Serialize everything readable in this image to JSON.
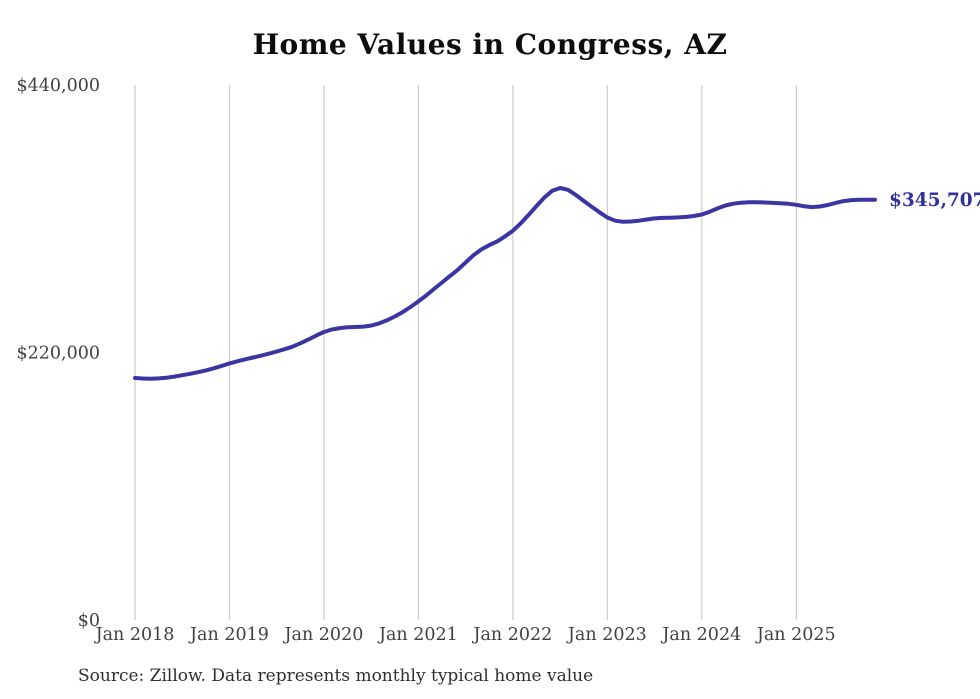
{
  "title": "Home Values in Congress, AZ",
  "source": "Source: Zillow. Data represents monthly typical home value",
  "colors": {
    "line": "#3b35a2",
    "end_label": "#34309a",
    "gridline": "#cccccc",
    "tick_text": "#414141",
    "title_text": "#0d0d0d",
    "source_text": "#2f2f2f"
  },
  "chart_data": {
    "type": "line",
    "title": "Home Values in Congress, AZ",
    "xlabel": "",
    "ylabel": "",
    "ylim": [
      0,
      440000
    ],
    "grid": "vertical-only",
    "legend": "none",
    "end_label": "$345,707",
    "y_ticks": [
      {
        "label": "$440,000",
        "value": 440000
      },
      {
        "label": "$220,000",
        "value": 220000
      },
      {
        "label": "$0",
        "value": 0
      }
    ],
    "x_tick_labels": [
      "Jan 2018",
      "Jan 2019",
      "Jan 2020",
      "Jan 2021",
      "Jan 2022",
      "Jan 2023",
      "Jan 2024",
      "Jan 2025"
    ],
    "x": [
      "2018-01",
      "2018-02",
      "2018-03",
      "2018-04",
      "2018-05",
      "2018-06",
      "2018-07",
      "2018-08",
      "2018-09",
      "2018-10",
      "2018-11",
      "2018-12",
      "2019-01",
      "2019-02",
      "2019-03",
      "2019-04",
      "2019-05",
      "2019-06",
      "2019-07",
      "2019-08",
      "2019-09",
      "2019-10",
      "2019-11",
      "2019-12",
      "2020-01",
      "2020-02",
      "2020-03",
      "2020-04",
      "2020-05",
      "2020-06",
      "2020-07",
      "2020-08",
      "2020-09",
      "2020-10",
      "2020-11",
      "2020-12",
      "2021-01",
      "2021-02",
      "2021-03",
      "2021-04",
      "2021-05",
      "2021-06",
      "2021-07",
      "2021-08",
      "2021-09",
      "2021-10",
      "2021-11",
      "2021-12",
      "2022-01",
      "2022-02",
      "2022-03",
      "2022-04",
      "2022-05",
      "2022-06",
      "2022-07",
      "2022-08",
      "2022-09",
      "2022-10",
      "2022-11",
      "2022-12",
      "2023-01",
      "2023-02",
      "2023-03",
      "2023-04",
      "2023-05",
      "2023-06",
      "2023-07",
      "2023-08",
      "2023-09",
      "2023-10",
      "2023-11",
      "2023-12",
      "2024-01",
      "2024-02",
      "2024-03",
      "2024-04",
      "2024-05",
      "2024-06",
      "2024-07",
      "2024-08",
      "2024-09",
      "2024-10",
      "2024-11",
      "2024-12",
      "2025-01",
      "2025-02",
      "2025-03",
      "2025-04",
      "2025-05",
      "2025-06",
      "2025-07",
      "2025-08",
      "2025-09",
      "2025-10",
      "2025-11"
    ],
    "values": [
      199000,
      198600,
      198400,
      198700,
      199300,
      200200,
      201300,
      202500,
      203800,
      205300,
      207000,
      209000,
      211000,
      212800,
      214400,
      215900,
      217400,
      219000,
      220800,
      222700,
      224800,
      227600,
      230600,
      233900,
      236900,
      238900,
      240100,
      240700,
      241000,
      241300,
      242100,
      243900,
      246500,
      249600,
      253200,
      257400,
      262000,
      267000,
      272300,
      277600,
      282800,
      288000,
      294000,
      300000,
      304800,
      308300,
      311400,
      315500,
      320200,
      326200,
      333200,
      340500,
      347500,
      353000,
      355300,
      353800,
      349500,
      344700,
      339900,
      335300,
      331000,
      328400,
      327500,
      327700,
      328400,
      329400,
      330300,
      330700,
      330900,
      331100,
      331500,
      332300,
      333500,
      335800,
      338500,
      340900,
      342400,
      343200,
      343500,
      343600,
      343400,
      343000,
      342700,
      342300,
      341500,
      340200,
      339600,
      340100,
      341300,
      343000,
      344500,
      345300,
      345600,
      345650,
      345707
    ]
  }
}
